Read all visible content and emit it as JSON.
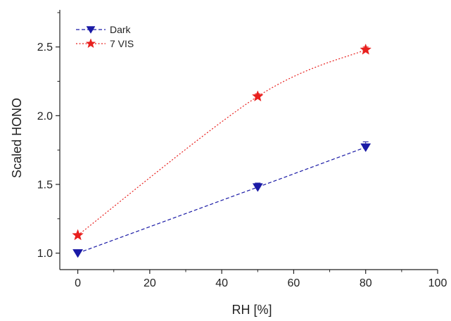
{
  "chart_data": {
    "type": "line",
    "title": "",
    "xlabel": "RH [%]",
    "ylabel": "Scaled HONO",
    "xlim": [
      -5,
      100
    ],
    "ylim": [
      0.88,
      2.77
    ],
    "xticks": [
      0,
      20,
      40,
      60,
      80,
      100
    ],
    "yticks": [
      1.0,
      1.5,
      2.0,
      2.5
    ],
    "xtick_labels": [
      "0",
      "20",
      "40",
      "60",
      "80",
      "100"
    ],
    "ytick_labels": [
      "1.0",
      "1.5",
      "2.0",
      "2.5"
    ],
    "grid": false,
    "legend_position": "top-left",
    "series": [
      {
        "name": "Dark",
        "color": "#1a1aa6",
        "line_style": "dashed",
        "marker": "triangle-down",
        "x": [
          0,
          50,
          80
        ],
        "y": [
          1.0,
          1.48,
          1.77
        ],
        "yerr": [
          0.01,
          0.03,
          0.04
        ]
      },
      {
        "name": "7 VIS",
        "color": "#e8201e",
        "line_style": "dotted",
        "marker": "star",
        "x": [
          0,
          50,
          80
        ],
        "y": [
          1.13,
          2.14,
          2.48
        ],
        "yerr": [
          0.01,
          0.02,
          0.02
        ]
      }
    ]
  }
}
